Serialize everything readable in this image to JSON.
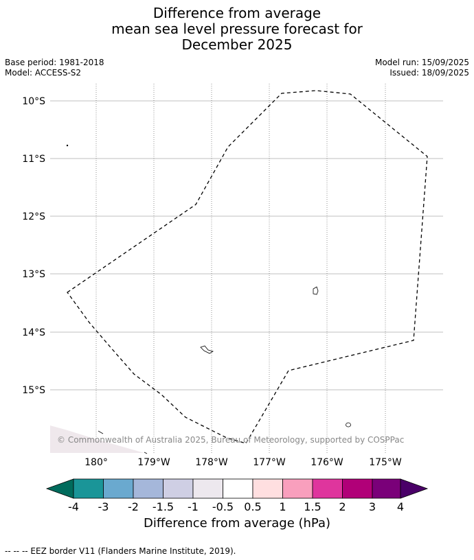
{
  "title": {
    "line1": "Difference from average",
    "line2": "mean sea level pressure forecast for",
    "line3": "December 2025"
  },
  "meta": {
    "base_period": "Base period: 1981-2018",
    "model": "Model: ACCESS-S2",
    "model_run": "Model run: 15/09/2025",
    "issued": "Issued: 18/09/2025"
  },
  "map": {
    "lat_labels": [
      "10°S",
      "11°S",
      "12°S",
      "13°S",
      "14°S",
      "15°S"
    ],
    "lon_labels": [
      "180°",
      "179°W",
      "178°W",
      "177°W",
      "176°W",
      "175°W"
    ],
    "copyright": "© Commonwealth of Australia 2025, Bureau of Meteorology, supported by COSPPac",
    "colors": {
      "gridline": "#aaaaaa",
      "eez": "#000000",
      "shade": "#efe8ec"
    }
  },
  "colorbar": {
    "title": "Difference from average (hPa)",
    "tick_labels": [
      "-4",
      "-3",
      "-2",
      "-1.5",
      "-1",
      "-0.5",
      "0.5",
      "1",
      "1.5",
      "2",
      "3",
      "4"
    ],
    "colors": [
      "#006b5c",
      "#1a9598",
      "#6aa9cf",
      "#a5b7da",
      "#cfcfe4",
      "#ede8ee",
      "#ffffff",
      "#ffdfe0",
      "#f99fbd",
      "#df359d",
      "#b10078",
      "#7a0079",
      "#4a0068"
    ]
  },
  "footer": {
    "legend_text": "-- -- -- EEZ border V11 (Flanders Marine Institute, 2019)."
  }
}
